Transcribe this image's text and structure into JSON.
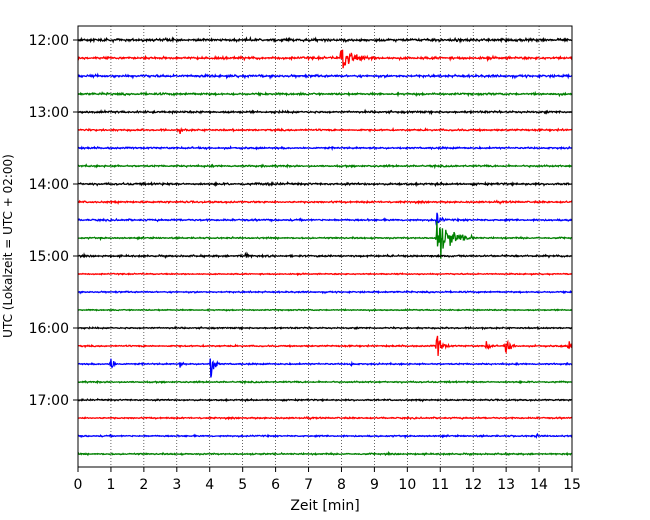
{
  "chart_data": {
    "type": "line",
    "chart_kind": "helicorder",
    "title": "",
    "xlabel": "Zeit  [min]",
    "ylabel": "UTC (Lokalzeit = UTC + 02:00)",
    "xlim": [
      0,
      15
    ],
    "x_ticks": [
      "0",
      "1",
      "2",
      "3",
      "4",
      "5",
      "6",
      "7",
      "8",
      "9",
      "10",
      "11",
      "12",
      "13",
      "14",
      "15"
    ],
    "y_ticks": [
      "12:00",
      "13:00",
      "14:00",
      "15:00",
      "16:00",
      "17:00"
    ],
    "grid": {
      "x": "dotted",
      "y": false
    },
    "trace_minutes": 15,
    "trace_colors": [
      "#000000",
      "#ff0000",
      "#0000ff",
      "#008000"
    ],
    "traces": [
      {
        "start": "12:00",
        "noise": 0.9,
        "events": []
      },
      {
        "start": "12:15",
        "noise": 0.8,
        "events": [
          {
            "minute": 8.0,
            "amplitude": 1.0,
            "duration": 1.0
          }
        ]
      },
      {
        "start": "12:30",
        "noise": 0.8,
        "events": []
      },
      {
        "start": "12:45",
        "noise": 0.7,
        "events": []
      },
      {
        "start": "13:00",
        "noise": 0.7,
        "events": []
      },
      {
        "start": "13:15",
        "noise": 0.6,
        "events": [
          {
            "minute": 3.1,
            "amplitude": 0.15,
            "duration": 0.3
          }
        ]
      },
      {
        "start": "13:30",
        "noise": 0.6,
        "events": []
      },
      {
        "start": "13:45",
        "noise": 0.6,
        "events": []
      },
      {
        "start": "14:00",
        "noise": 0.7,
        "events": [
          {
            "minute": 5.7,
            "amplitude": 0.1,
            "duration": 0.3
          }
        ]
      },
      {
        "start": "14:15",
        "noise": 0.6,
        "events": []
      },
      {
        "start": "14:30",
        "noise": 0.6,
        "events": [
          {
            "minute": 10.9,
            "amplitude": 0.6,
            "duration": 0.3
          }
        ]
      },
      {
        "start": "14:45",
        "noise": 0.5,
        "events": [
          {
            "minute": 10.9,
            "amplitude": 1.6,
            "duration": 1.2
          }
        ]
      },
      {
        "start": "15:00",
        "noise": 0.6,
        "events": [
          {
            "minute": 4.9,
            "amplitude": 0.12,
            "duration": 0.3
          },
          {
            "minute": 5.1,
            "amplitude": 0.15,
            "duration": 0.3
          }
        ]
      },
      {
        "start": "15:15",
        "noise": 0.4,
        "events": []
      },
      {
        "start": "15:30",
        "noise": 0.5,
        "events": []
      },
      {
        "start": "15:45",
        "noise": 0.4,
        "events": []
      },
      {
        "start": "16:00",
        "noise": 0.5,
        "events": []
      },
      {
        "start": "16:15",
        "noise": 0.5,
        "events": [
          {
            "minute": 10.9,
            "amplitude": 0.9,
            "duration": 0.4
          },
          {
            "minute": 12.4,
            "amplitude": 0.3,
            "duration": 0.3
          },
          {
            "minute": 13.0,
            "amplitude": 0.8,
            "duration": 0.3
          },
          {
            "minute": 14.9,
            "amplitude": 0.4,
            "duration": 0.3
          }
        ]
      },
      {
        "start": "16:30",
        "noise": 0.5,
        "events": [
          {
            "minute": 1.0,
            "amplitude": 1.0,
            "duration": 0.2
          },
          {
            "minute": 3.1,
            "amplitude": 0.3,
            "duration": 0.15
          },
          {
            "minute": 4.05,
            "amplitude": 1.6,
            "duration": 0.25
          },
          {
            "minute": 8.3,
            "amplitude": 0.15,
            "duration": 0.2
          }
        ]
      },
      {
        "start": "16:45",
        "noise": 0.5,
        "events": []
      },
      {
        "start": "17:00",
        "noise": 0.5,
        "events": []
      },
      {
        "start": "17:15",
        "noise": 0.5,
        "events": []
      },
      {
        "start": "17:30",
        "noise": 0.5,
        "events": [
          {
            "minute": 13.9,
            "amplitude": 0.12,
            "duration": 0.2
          }
        ]
      },
      {
        "start": "17:45",
        "noise": 0.5,
        "events": []
      }
    ]
  }
}
